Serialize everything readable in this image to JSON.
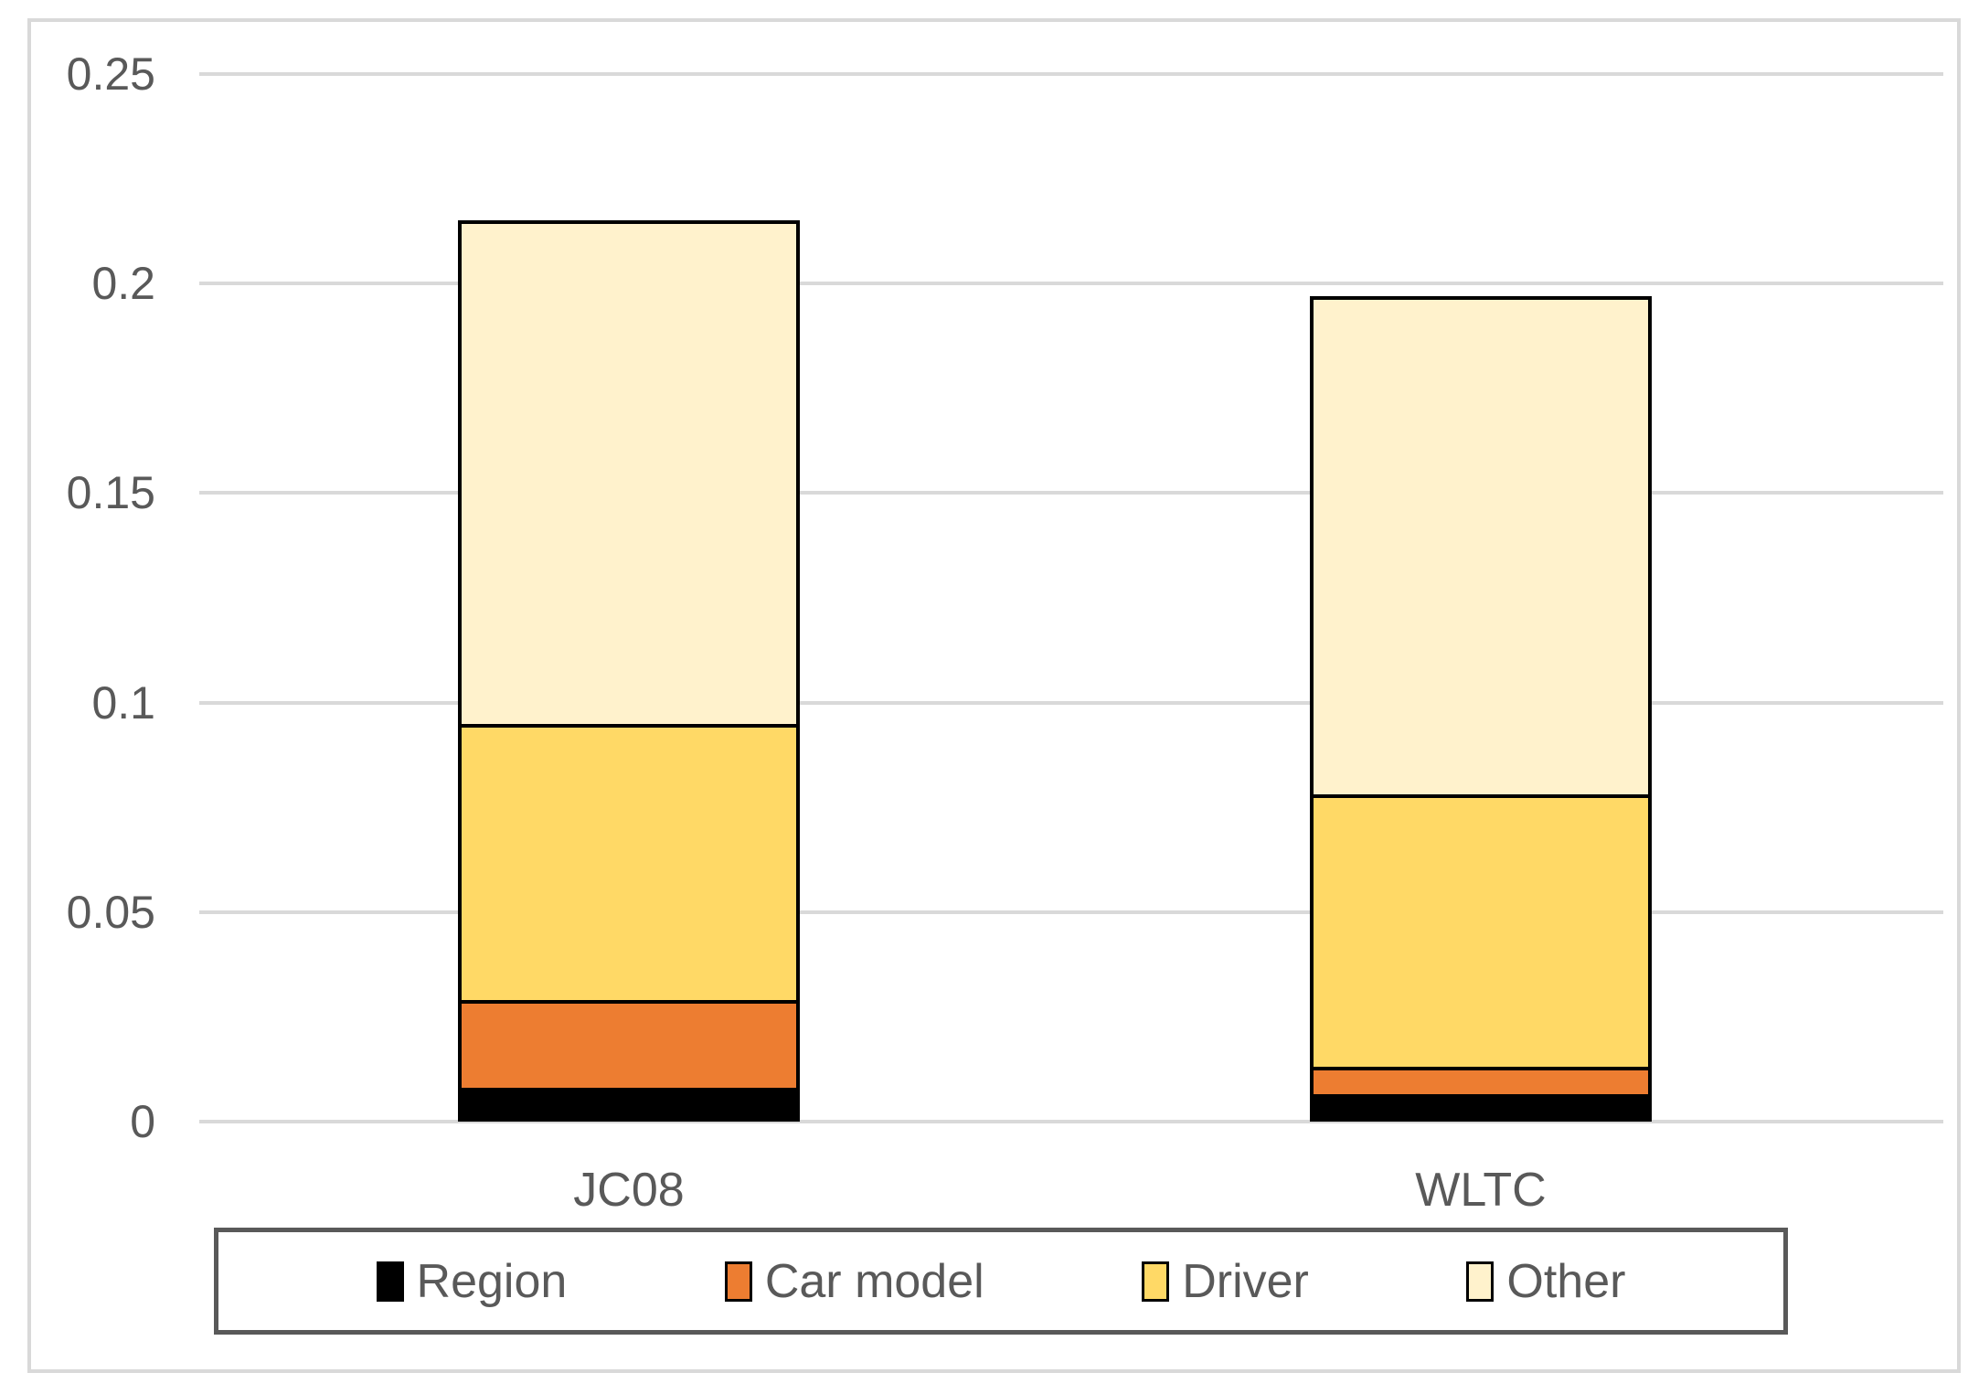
{
  "chart_data": {
    "type": "bar",
    "variant": "stacked-column",
    "title": "",
    "xlabel": "",
    "ylabel": "",
    "categories": [
      "JC08",
      "WLTC"
    ],
    "series": [
      {
        "name": "Region",
        "color": "#000000",
        "values": [
          0.008,
          0.0065
        ]
      },
      {
        "name": "Car model",
        "color": "#ED7D31",
        "values": [
          0.021,
          0.0065
        ]
      },
      {
        "name": "Driver",
        "color": "#FFD966",
        "values": [
          0.066,
          0.065
        ]
      },
      {
        "name": "Other",
        "color": "#FFF2CC",
        "values": [
          0.12,
          0.119
        ]
      }
    ],
    "stack_totals": [
      0.215,
      0.197
    ],
    "ylim": [
      0,
      0.25
    ],
    "yticks": [
      0,
      0.05,
      0.1,
      0.15,
      0.2,
      0.25
    ],
    "ytick_labels": [
      "0",
      "0.05",
      "0.1",
      "0.15",
      "0.2",
      "0.25"
    ],
    "grid": "horizontal",
    "legend_position": "bottom"
  },
  "colors": {
    "segment_outline": "#000000",
    "gridline": "#D9D9D9",
    "chart_frame_border": "#D9D9D9",
    "axis_text": "#595959",
    "legend_border": "#595959",
    "background": "#FFFFFF"
  },
  "legend": {
    "items": [
      {
        "label": "Region",
        "swatch_color": "#000000"
      },
      {
        "label": "Car model",
        "swatch_color": "#ED7D31"
      },
      {
        "label": "Driver",
        "swatch_color": "#FFD966"
      },
      {
        "label": "Other",
        "swatch_color": "#FFF2CC"
      }
    ]
  }
}
